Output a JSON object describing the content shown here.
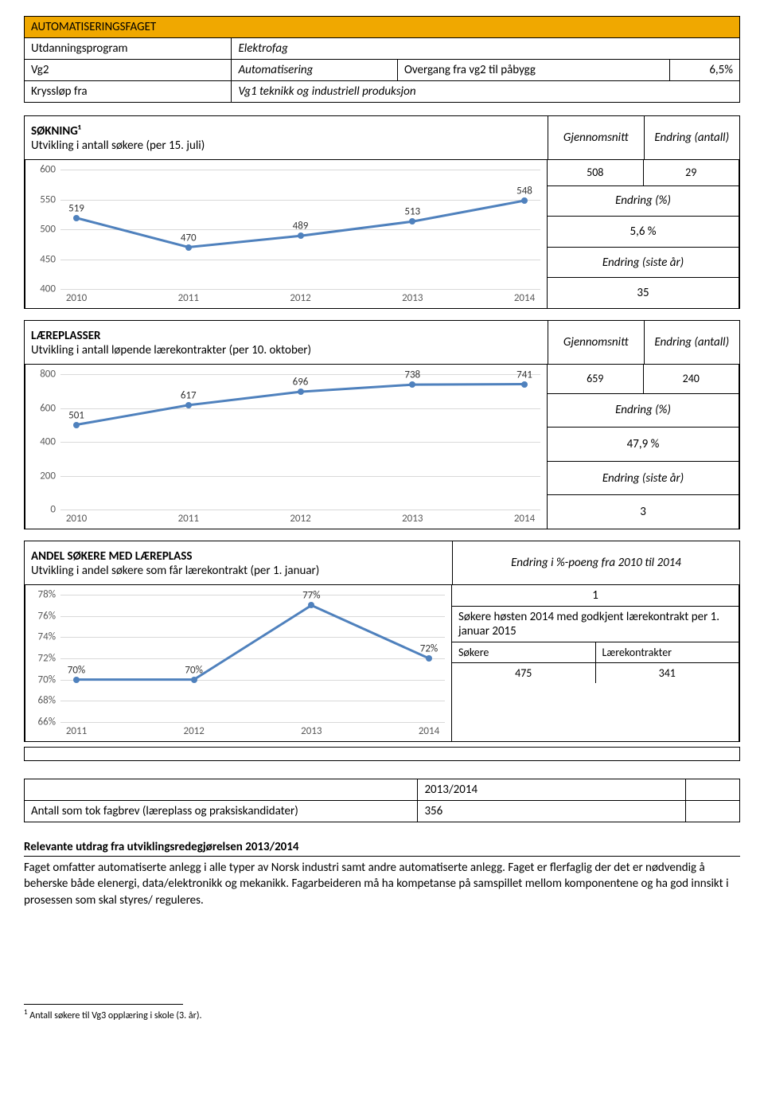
{
  "title": "AUTOMATISERINGSFAGET",
  "meta": {
    "rows": [
      {
        "k": "Utdanningsprogram",
        "v": "Elektrofag",
        "extra": null
      },
      {
        "k": "Vg2",
        "v": "Automatisering",
        "extra_k": "Overgang fra vg2 til påbygg",
        "extra_v": "6,5%"
      },
      {
        "k": "Kryssløp fra",
        "v": "Vg1 teknikk og industriell produksjon",
        "extra": null
      }
    ]
  },
  "sokning": {
    "label": "SØKNING¹",
    "sub": "Utvikling i antall søkere (per 15. juli)",
    "side_headers": [
      "Gjennomsnitt",
      "Endring (antall)"
    ],
    "side": {
      "avg": "508",
      "change_n": "29",
      "pct_label": "Endring (%)",
      "pct": "5,6 %",
      "last_label": "Endring (siste år)",
      "last": "35"
    },
    "chart": {
      "type": "line",
      "years": [
        "2010",
        "2011",
        "2012",
        "2013",
        "2014"
      ],
      "values": [
        519,
        470,
        489,
        513,
        548
      ],
      "ylim": [
        400,
        600
      ],
      "yticks": [
        400,
        450,
        500,
        550,
        600
      ],
      "line_color": "#4f81bd",
      "marker_color": "#4f81bd",
      "grid_color": "#d9d9d9",
      "text_color": "#595959",
      "background_color": "#ffffff"
    }
  },
  "laereplasser": {
    "label": "LÆREPLASSER",
    "sub": "Utvikling i antall løpende lærekontrakter (per 10. oktober)",
    "side_headers": [
      "Gjennomsnitt",
      "Endring (antall)"
    ],
    "side": {
      "avg": "659",
      "change_n": "240",
      "pct_label": "Endring (%)",
      "pct": "47,9 %",
      "last_label": "Endring (siste år)",
      "last": "3"
    },
    "chart": {
      "type": "line",
      "years": [
        "2010",
        "2011",
        "2012",
        "2013",
        "2014"
      ],
      "values": [
        501,
        617,
        696,
        738,
        741
      ],
      "ylim": [
        0,
        800
      ],
      "yticks": [
        0,
        200,
        400,
        600,
        800
      ],
      "line_color": "#4f81bd",
      "marker_color": "#4f81bd",
      "grid_color": "#d9d9d9",
      "text_color": "#595959",
      "background_color": "#ffffff"
    }
  },
  "andel": {
    "label": "ANDEL SØKERE MED LÆREPLASS",
    "sub": "Utvikling i andel søkere som får lærekontrakt (per 1. januar)",
    "side_header": "Endring i %-poeng fra 2010 til 2014",
    "side": {
      "delta": "1",
      "text1": "Søkere høsten 2014 med godkjent lærekontrakt per 1. januar 2015",
      "col1": "Søkere",
      "col2": "Lærekontrakter",
      "v1": "475",
      "v2": "341"
    },
    "chart": {
      "type": "line",
      "years": [
        "2011",
        "2012",
        "2013",
        "2014"
      ],
      "values": [
        70,
        70,
        77,
        72
      ],
      "value_labels": [
        "70%",
        "70%",
        "77%",
        "72%"
      ],
      "ylim": [
        66,
        78
      ],
      "yticks": [
        66,
        68,
        70,
        72,
        74,
        76,
        78
      ],
      "ytick_labels": [
        "66%",
        "68%",
        "70%",
        "72%",
        "74%",
        "76%",
        "78%"
      ],
      "line_color": "#4f81bd",
      "marker_color": "#4f81bd",
      "grid_color": "#d9d9d9",
      "text_color": "#595959",
      "background_color": "#ffffff"
    }
  },
  "fagbrev": {
    "col_year": "2013/2014",
    "row_label": "Antall som tok fagbrev (læreplass og praksiskandidater)",
    "value": "356"
  },
  "relevante": {
    "header": "Relevante utdrag fra utviklingsredegjørelsen 2013/2014",
    "body": "Faget omfatter automatiserte anlegg i alle typer av Norsk industri samt andre automatiserte anlegg. Faget er flerfaglig der det er nødvendig å beherske både elenergi, data/elektronikk og mekanikk. Fagarbeideren må ha kompetanse på samspillet mellom komponentene og ha god innsikt i prosessen som skal styres/ reguleres."
  },
  "footnote": "Antall søkere til Vg3 opplæring i skole (3. år)."
}
